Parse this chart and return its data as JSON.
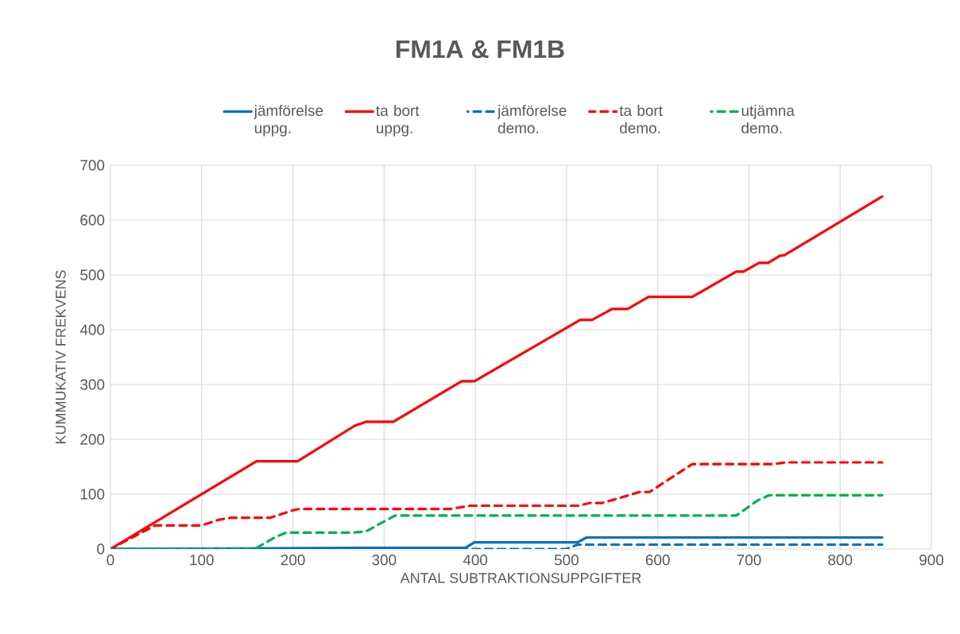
{
  "chart_data": {
    "type": "line",
    "title": "FM1A & FM1B",
    "xlabel": "ANTAL SUBTRAKTIONSUPPGIFTER",
    "ylabel": "KUMMUKATIV FREKVENS",
    "xlim": [
      0,
      900
    ],
    "xticks": [
      0,
      100,
      200,
      300,
      400,
      500,
      600,
      700,
      800,
      900
    ],
    "ylim": [
      0,
      700
    ],
    "yticks": [
      0,
      100,
      200,
      300,
      400,
      500,
      600,
      700
    ],
    "grid": true,
    "legend": "top",
    "marker": "none",
    "series": [
      {
        "name": "jämförelse uppg.",
        "color": "#0070c0",
        "line_style": "solid",
        "x": [
          0,
          271,
          389,
          399,
          512,
          522,
          846
        ],
        "values": [
          0,
          2,
          2,
          12,
          12,
          21,
          21
        ]
      },
      {
        "name": "ta bort uppg.",
        "color": "#ff0000",
        "line_style": "solid",
        "x": [
          0,
          160,
          205,
          268,
          280,
          310,
          385,
          399,
          515,
          528,
          550,
          567,
          590,
          638,
          686,
          694,
          711,
          721,
          734,
          739,
          846
        ],
        "values": [
          0,
          160,
          160,
          225,
          232,
          232,
          306,
          306,
          418,
          418,
          438,
          438,
          460,
          460,
          506,
          506,
          522,
          522,
          535,
          536,
          643
        ]
      },
      {
        "name": "jämförelse demo.",
        "color": "#0070c0",
        "line_style": "dashed",
        "x": [
          0,
          500,
          512,
          846
        ],
        "values": [
          0,
          0,
          8,
          8
        ]
      },
      {
        "name": "ta bort demo.",
        "color": "#ff0000",
        "line_style": "dashed",
        "x": [
          0,
          49,
          100,
          118,
          132,
          175,
          201,
          207,
          372,
          395,
          513,
          526,
          539,
          552,
          580,
          591,
          638,
          727,
          741,
          846
        ],
        "values": [
          0,
          43,
          43,
          53,
          57,
          57,
          71,
          73,
          73,
          79,
          79,
          84,
          84,
          90,
          104,
          104,
          155,
          155,
          158,
          158
        ]
      },
      {
        "name": "utjämna demo.",
        "color": "#00b050",
        "line_style": "dashed",
        "x": [
          0,
          158,
          181,
          193,
          265,
          280,
          291,
          312,
          686,
          698,
          709,
          722,
          846
        ],
        "values": [
          0,
          0,
          22,
          30,
          30,
          32,
          42,
          61,
          61,
          75,
          88,
          98,
          98
        ]
      }
    ]
  }
}
